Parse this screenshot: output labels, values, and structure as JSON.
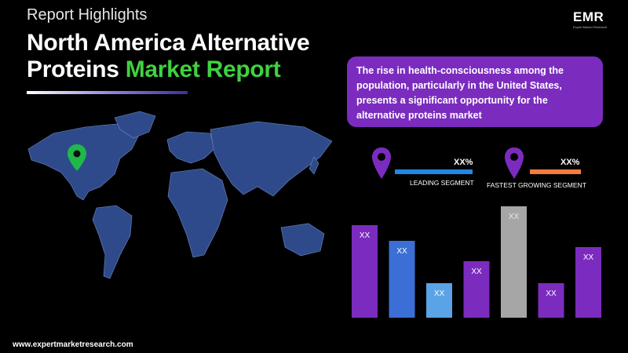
{
  "header": {
    "kicker": "Report Highlights",
    "title_main": "North America Alternative Proteins",
    "title_highlight": "Market Report"
  },
  "logo": {
    "text": "EMR",
    "tagline": "Expert Market Research"
  },
  "callout": {
    "text": "The rise in health-consciousness among the population, particularly in the United States, presents a significant opportunity for the alternative proteins market"
  },
  "segments": {
    "leading": {
      "value": "XX%",
      "label": "LEADING SEGMENT",
      "color": "#1e88e5"
    },
    "fastest": {
      "value": "XX%",
      "label": "FASTEST GROWING SEGMENT",
      "color": "#f57c3b"
    }
  },
  "footer": {
    "url": "www.expertmarketresearch.com"
  },
  "colors": {
    "accent_green": "#3fd23f",
    "callout_bg": "#7b2cbf",
    "pin_purple": "#7b2cbf",
    "map_fill": "#2f4a8a"
  },
  "chart_data": {
    "type": "bar",
    "categories": [
      "",
      "",
      "",
      "",
      "",
      "",
      ""
    ],
    "values": [
      118,
      98,
      44,
      72,
      142,
      44,
      90
    ],
    "labels": [
      "XX",
      "XX",
      "XX",
      "XX",
      "XX",
      "XX",
      "XX"
    ],
    "colors": [
      "#7b2cbf",
      "#3b6fd6",
      "#5aa3e6",
      "#7b2cbf",
      "#a6a6a6",
      "#7b2cbf",
      "#7b2cbf"
    ],
    "ylim": [
      0,
      142
    ]
  }
}
